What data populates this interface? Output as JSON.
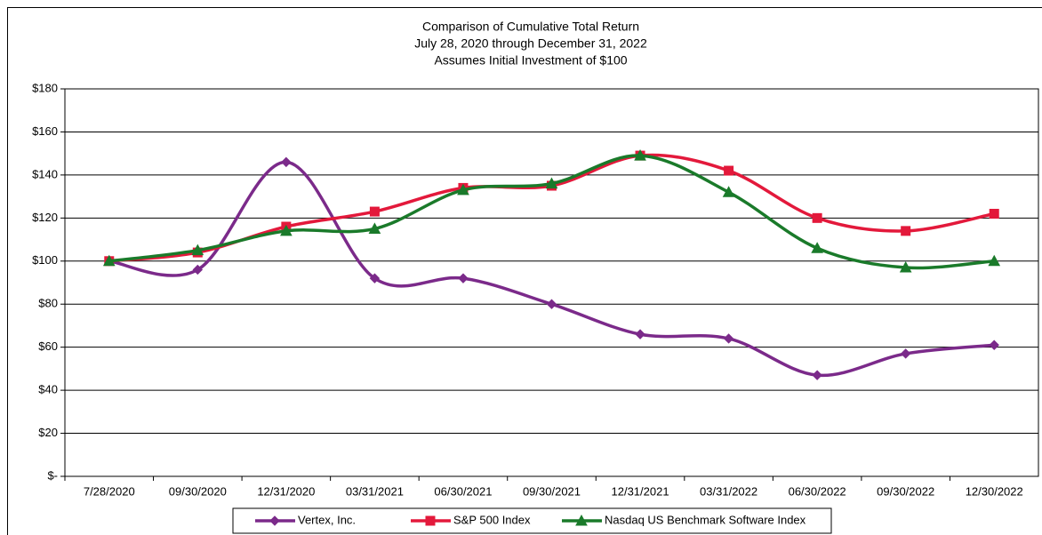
{
  "chart_data": {
    "type": "line",
    "title": "Comparison of Cumulative Total Return",
    "subtitle": [
      "July 28, 2020 through December 31, 2022",
      "Assumes Initial Investment of $100"
    ],
    "categories": [
      "7/28/2020",
      "09/30/2020",
      "12/31/2020",
      "03/31/2021",
      "06/30/2021",
      "09/30/2021",
      "12/31/2021",
      "03/31/2022",
      "06/30/2022",
      "09/30/2022",
      "12/30/2022"
    ],
    "series": [
      {
        "name": "Vertex, Inc.",
        "color": "#7b2a8a",
        "marker": "diamond",
        "values": [
          100,
          96,
          146,
          92,
          92,
          80,
          66,
          64,
          47,
          57,
          61
        ]
      },
      {
        "name": "S&P 500 Index",
        "color": "#e3193b",
        "marker": "square",
        "values": [
          100,
          104,
          116,
          123,
          134,
          135,
          149,
          142,
          120,
          114,
          122
        ]
      },
      {
        "name": "Nasdaq US Benchmark Software Index",
        "color": "#1a7a2a",
        "marker": "triangle",
        "values": [
          100,
          105,
          114,
          115,
          133,
          136,
          149,
          132,
          106,
          97,
          100
        ]
      }
    ],
    "ylim": [
      0,
      180
    ],
    "yticks": [
      {
        "value": 0,
        "label": "$-"
      },
      {
        "value": 20,
        "label": "$20"
      },
      {
        "value": 40,
        "label": "$40"
      },
      {
        "value": 60,
        "label": "$60"
      },
      {
        "value": 80,
        "label": "$80"
      },
      {
        "value": 100,
        "label": "$100"
      },
      {
        "value": 120,
        "label": "$120"
      },
      {
        "value": 140,
        "label": "$140"
      },
      {
        "value": 160,
        "label": "$160"
      },
      {
        "value": 180,
        "label": "$180"
      }
    ],
    "grid": true,
    "legend": "bottom"
  }
}
